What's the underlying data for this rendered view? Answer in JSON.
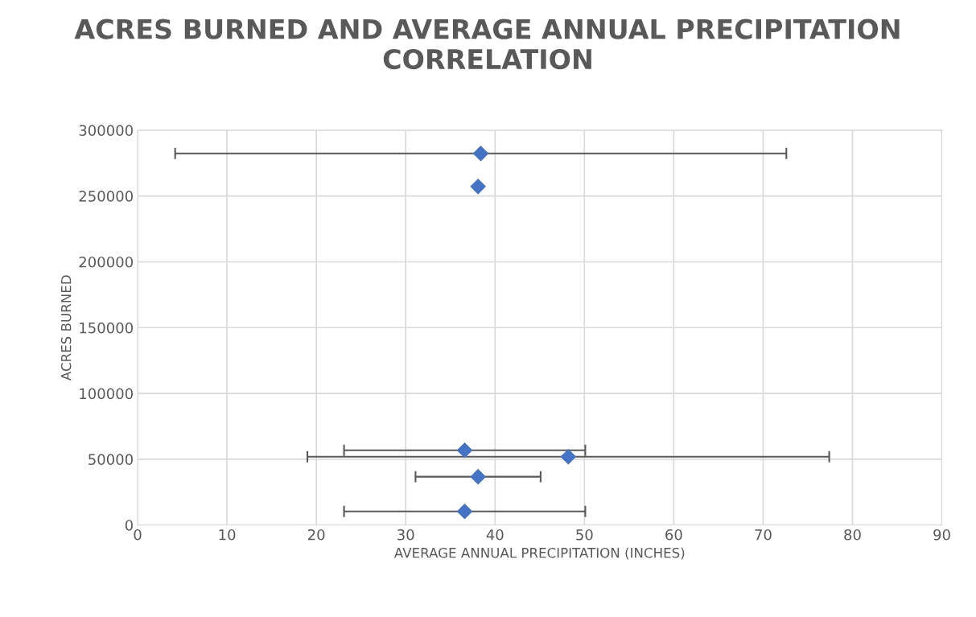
{
  "chart_data": {
    "type": "scatter",
    "title": "ACRES BURNED AND AVERAGE ANNUAL PRECIPITATION CORRELATION",
    "xlabel": "AVERAGE ANNUAL PRECIPITATION (INCHES)",
    "ylabel": "ACRES BURNED",
    "x": [
      38.4,
      38.1,
      36.6,
      48.2,
      38.1,
      36.6
    ],
    "series": [
      {
        "color": "#4472c4",
        "values": [
          282300,
          257200,
          56800,
          51900,
          36700,
          10400
        ],
        "xerrors": [
          34.2,
          null,
          13.5,
          29.2,
          7.0,
          13.5
        ]
      }
    ],
    "xlim": [
      0,
      90
    ],
    "xticks": [
      0,
      10,
      20,
      30,
      40,
      50,
      60,
      70,
      80,
      90
    ],
    "ylim": [
      0,
      300000
    ],
    "yticks": [
      0,
      50000,
      100000,
      150000,
      200000,
      250000,
      300000
    ],
    "grid": true,
    "marker": "diamond"
  }
}
